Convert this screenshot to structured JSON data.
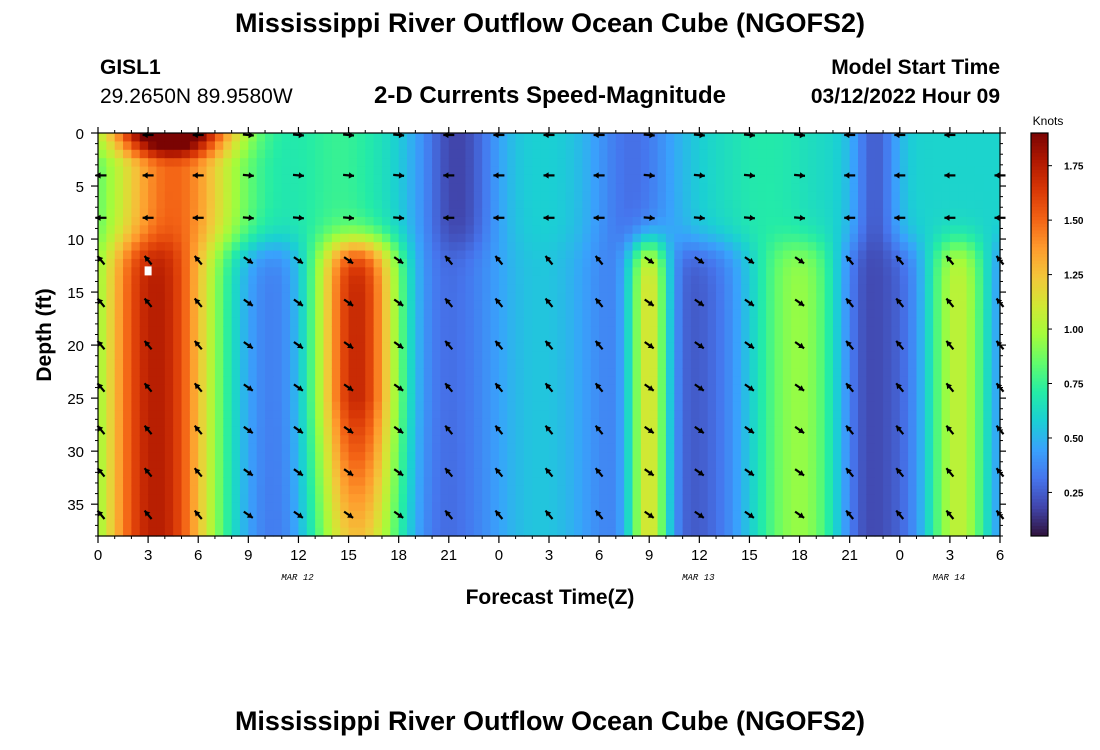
{
  "page": {
    "title_top": "Mississippi River Outflow Ocean Cube (NGOFS2)",
    "title_bottom": "Mississippi River Outflow Ocean Cube (NGOFS2)",
    "station": "GISL1",
    "coordinates": "29.2650N  89.9580W",
    "subtitle": "2-D Currents Speed-Magnitude",
    "model_start_label": "Model Start Time",
    "model_start_value": "03/12/2022 Hour 09"
  },
  "chart_data": {
    "type": "heatmap",
    "title": "2-D Currents Speed-Magnitude",
    "xlabel": "Forecast Time(Z)",
    "ylabel": "Depth (ft)",
    "xlim": [
      0,
      54
    ],
    "ylim": [
      0,
      38
    ],
    "y_inverted": true,
    "x_tick_values": [
      0,
      3,
      6,
      9,
      12,
      15,
      18,
      21,
      24,
      27,
      30,
      33,
      36,
      39,
      42,
      45,
      48,
      51,
      54
    ],
    "x_tick_labels": [
      "0",
      "3",
      "6",
      "9",
      "12",
      "15",
      "18",
      "21",
      "0",
      "3",
      "6",
      "9",
      "12",
      "15",
      "18",
      "21",
      "0",
      "3",
      "6"
    ],
    "date_labels": [
      {
        "x": 12,
        "text": "MAR 12"
      },
      {
        "x": 36,
        "text": "MAR 13"
      },
      {
        "x": 51,
        "text": "MAR 14"
      }
    ],
    "y_tick_values": [
      0,
      5,
      10,
      15,
      20,
      25,
      30,
      35
    ],
    "y_tick_labels": [
      "0",
      "5",
      "10",
      "15",
      "20",
      "25",
      "30",
      "35"
    ],
    "colorbar": {
      "label": "Knots",
      "range": [
        0.05,
        1.9
      ],
      "tick_values": [
        0.25,
        0.5,
        0.75,
        1.0,
        1.25,
        1.5,
        1.75
      ],
      "tick_labels": [
        "0.25",
        "0.50",
        "0.75",
        "1.00",
        "1.25",
        "1.50",
        "1.75"
      ],
      "colormap": [
        "#30123b",
        "#4145ab",
        "#4675ed",
        "#39a2fc",
        "#1bcfd4",
        "#24eca6",
        "#61fc6c",
        "#a4fc3b",
        "#d1e834",
        "#f3c63a",
        "#fe9b2d",
        "#f36315",
        "#d93806",
        "#b11901",
        "#7a0403"
      ]
    },
    "grid": false,
    "marker": {
      "x": 3,
      "y": 13
    }
  }
}
